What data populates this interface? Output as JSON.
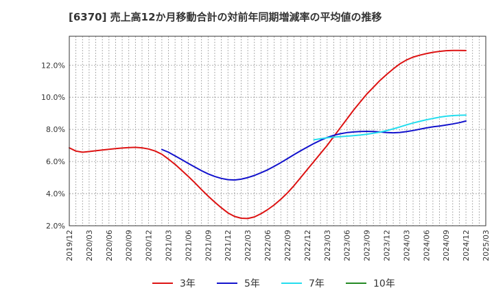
{
  "chart_data": {
    "type": "line",
    "title": "[6370]  売上高12か月移動合計の対前年同期増減率の平均値の推移",
    "xlabel": "",
    "ylabel": "",
    "ylim": [
      2.0,
      13.8
    ],
    "y_ticks": [
      "2.0%",
      "4.0%",
      "6.0%",
      "8.0%",
      "10.0%",
      "12.0%"
    ],
    "y_tick_values": [
      2,
      4,
      6,
      8,
      10,
      12
    ],
    "x_ticks": [
      "2019/12",
      "2020/03",
      "2020/06",
      "2020/09",
      "2020/12",
      "2021/03",
      "2021/06",
      "2021/09",
      "2021/12",
      "2022/03",
      "2022/06",
      "2022/09",
      "2022/12",
      "2023/03",
      "2023/06",
      "2023/09",
      "2023/12",
      "2024/03",
      "2024/06",
      "2024/09",
      "2024/12",
      "2025/03"
    ],
    "grid": true,
    "legend_position": "bottom",
    "series": [
      {
        "name": "3年",
        "color": "#dd1111",
        "points": [
          [
            "2019/12",
            6.85
          ],
          [
            "2020/01",
            6.65
          ],
          [
            "2020/02",
            6.58
          ],
          [
            "2020/03",
            6.62
          ],
          [
            "2020/04",
            6.67
          ],
          [
            "2020/05",
            6.72
          ],
          [
            "2020/06",
            6.76
          ],
          [
            "2020/07",
            6.8
          ],
          [
            "2020/08",
            6.84
          ],
          [
            "2020/09",
            6.87
          ],
          [
            "2020/10",
            6.88
          ],
          [
            "2020/11",
            6.85
          ],
          [
            "2020/12",
            6.78
          ],
          [
            "2021/01",
            6.65
          ],
          [
            "2021/02",
            6.45
          ],
          [
            "2021/03",
            6.15
          ],
          [
            "2021/04",
            5.82
          ],
          [
            "2021/05",
            5.45
          ],
          [
            "2021/06",
            5.07
          ],
          [
            "2021/07",
            4.67
          ],
          [
            "2021/08",
            4.25
          ],
          [
            "2021/09",
            3.85
          ],
          [
            "2021/10",
            3.47
          ],
          [
            "2021/11",
            3.12
          ],
          [
            "2021/12",
            2.8
          ],
          [
            "2022/01",
            2.58
          ],
          [
            "2022/02",
            2.47
          ],
          [
            "2022/03",
            2.45
          ],
          [
            "2022/04",
            2.55
          ],
          [
            "2022/05",
            2.75
          ],
          [
            "2022/06",
            3.0
          ],
          [
            "2022/07",
            3.3
          ],
          [
            "2022/08",
            3.65
          ],
          [
            "2022/09",
            4.05
          ],
          [
            "2022/10",
            4.5
          ],
          [
            "2022/11",
            5.0
          ],
          [
            "2022/12",
            5.5
          ],
          [
            "2023/01",
            6.0
          ],
          [
            "2023/02",
            6.5
          ],
          [
            "2023/03",
            7.0
          ],
          [
            "2023/04",
            7.55
          ],
          [
            "2023/05",
            8.1
          ],
          [
            "2023/06",
            8.65
          ],
          [
            "2023/07",
            9.2
          ],
          [
            "2023/08",
            9.7
          ],
          [
            "2023/09",
            10.2
          ],
          [
            "2023/10",
            10.62
          ],
          [
            "2023/11",
            11.05
          ],
          [
            "2023/12",
            11.42
          ],
          [
            "2024/01",
            11.77
          ],
          [
            "2024/02",
            12.08
          ],
          [
            "2024/03",
            12.32
          ],
          [
            "2024/04",
            12.5
          ],
          [
            "2024/05",
            12.62
          ],
          [
            "2024/06",
            12.72
          ],
          [
            "2024/07",
            12.8
          ],
          [
            "2024/08",
            12.86
          ],
          [
            "2024/09",
            12.9
          ],
          [
            "2024/10",
            12.92
          ],
          [
            "2024/11",
            12.92
          ],
          [
            "2024/12",
            12.91
          ]
        ]
      },
      {
        "name": "5年",
        "color": "#1111cc",
        "points": [
          [
            "2021/02",
            6.75
          ],
          [
            "2021/03",
            6.58
          ],
          [
            "2021/04",
            6.35
          ],
          [
            "2021/05",
            6.12
          ],
          [
            "2021/06",
            5.88
          ],
          [
            "2021/07",
            5.65
          ],
          [
            "2021/08",
            5.43
          ],
          [
            "2021/09",
            5.23
          ],
          [
            "2021/10",
            5.07
          ],
          [
            "2021/11",
            4.95
          ],
          [
            "2021/12",
            4.87
          ],
          [
            "2022/01",
            4.85
          ],
          [
            "2022/02",
            4.9
          ],
          [
            "2022/03",
            5.0
          ],
          [
            "2022/04",
            5.13
          ],
          [
            "2022/05",
            5.3
          ],
          [
            "2022/06",
            5.48
          ],
          [
            "2022/07",
            5.7
          ],
          [
            "2022/08",
            5.93
          ],
          [
            "2022/09",
            6.18
          ],
          [
            "2022/10",
            6.43
          ],
          [
            "2022/11",
            6.67
          ],
          [
            "2022/12",
            6.9
          ],
          [
            "2023/01",
            7.12
          ],
          [
            "2023/02",
            7.32
          ],
          [
            "2023/03",
            7.5
          ],
          [
            "2023/04",
            7.63
          ],
          [
            "2023/05",
            7.73
          ],
          [
            "2023/06",
            7.8
          ],
          [
            "2023/07",
            7.84
          ],
          [
            "2023/08",
            7.87
          ],
          [
            "2023/09",
            7.88
          ],
          [
            "2023/10",
            7.87
          ],
          [
            "2023/11",
            7.84
          ],
          [
            "2023/12",
            7.8
          ],
          [
            "2024/01",
            7.79
          ],
          [
            "2024/02",
            7.81
          ],
          [
            "2024/03",
            7.86
          ],
          [
            "2024/04",
            7.93
          ],
          [
            "2024/05",
            8.01
          ],
          [
            "2024/06",
            8.09
          ],
          [
            "2024/07",
            8.16
          ],
          [
            "2024/08",
            8.21
          ],
          [
            "2024/09",
            8.27
          ],
          [
            "2024/10",
            8.34
          ],
          [
            "2024/11",
            8.42
          ],
          [
            "2024/12",
            8.52
          ]
        ]
      },
      {
        "name": "7年",
        "color": "#22ddee",
        "points": [
          [
            "2023/01",
            7.35
          ],
          [
            "2023/02",
            7.42
          ],
          [
            "2023/03",
            7.48
          ],
          [
            "2023/04",
            7.52
          ],
          [
            "2023/05",
            7.55
          ],
          [
            "2023/06",
            7.58
          ],
          [
            "2023/07",
            7.61
          ],
          [
            "2023/08",
            7.65
          ],
          [
            "2023/09",
            7.7
          ],
          [
            "2023/10",
            7.76
          ],
          [
            "2023/11",
            7.83
          ],
          [
            "2023/12",
            7.92
          ],
          [
            "2024/01",
            8.03
          ],
          [
            "2024/02",
            8.15
          ],
          [
            "2024/03",
            8.28
          ],
          [
            "2024/04",
            8.4
          ],
          [
            "2024/05",
            8.5
          ],
          [
            "2024/06",
            8.6
          ],
          [
            "2024/07",
            8.68
          ],
          [
            "2024/08",
            8.76
          ],
          [
            "2024/09",
            8.82
          ],
          [
            "2024/10",
            8.86
          ],
          [
            "2024/11",
            8.88
          ],
          [
            "2024/12",
            8.89
          ]
        ]
      },
      {
        "name": "10年",
        "color": "#228822",
        "points": []
      }
    ]
  }
}
